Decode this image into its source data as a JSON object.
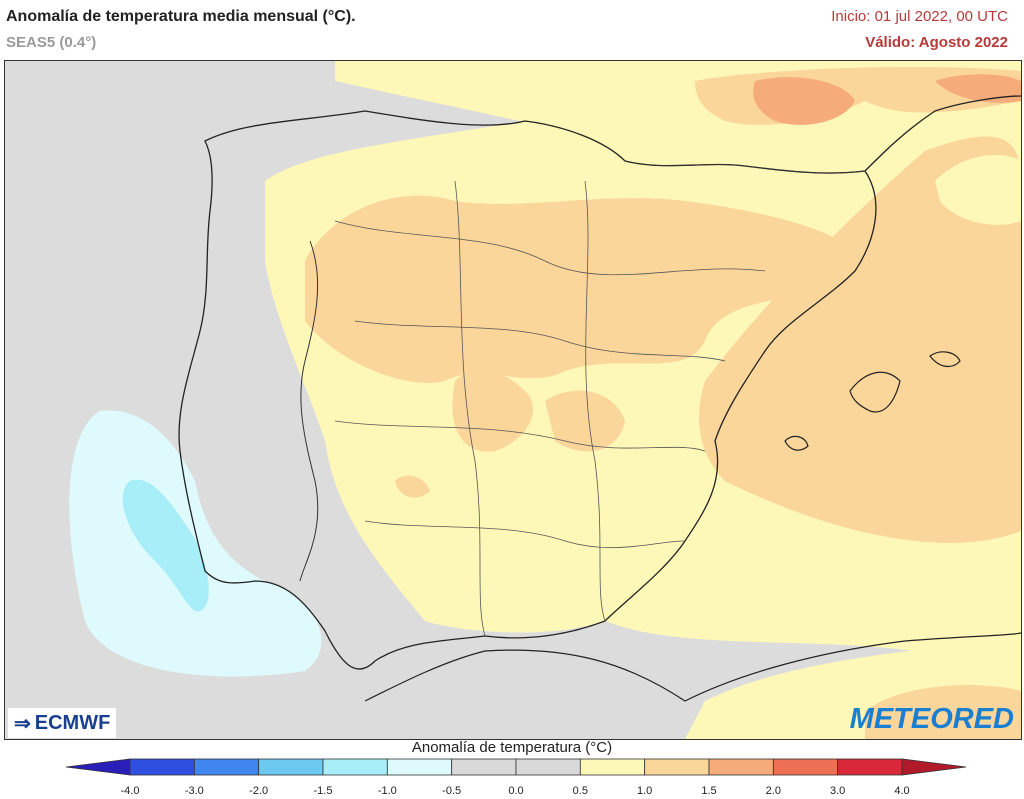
{
  "header": {
    "title": "Anomalía de temperatura media mensual (°C).",
    "subtitle": "SEAS5 (0.4°)",
    "init": "Inicio: 01 jul 2022, 00 UTC",
    "valid": "Válido: Agosto 2022"
  },
  "logos": {
    "left": "ECMWF",
    "right": "METEORED"
  },
  "legend": {
    "title": "Anomalía de temperatura (°C)",
    "ticks": [
      "-4.0",
      "-3.0",
      "-2.0",
      "-1.5",
      "-1.0",
      "-0.5",
      "0.0",
      "0.5",
      "1.0",
      "1.5",
      "2.0",
      "3.0",
      "4.0"
    ],
    "colors": {
      "below_min": "#2a1fb8",
      "m4_m3": "#2f4fe0",
      "m3_m2": "#3f86ee",
      "m2_m15": "#6ccaf0",
      "m15_m1": "#a8eef8",
      "m1_m05": "#dffafd",
      "m05_05": "#d9d9d9",
      "p05_1": "#fdf8b8",
      "p1_15": "#fbd69b",
      "p15_2": "#f6ab7a",
      "p2_3": "#ee7054",
      "p3_4": "#d8283a",
      "above_max": "#b01a2a"
    }
  }
}
